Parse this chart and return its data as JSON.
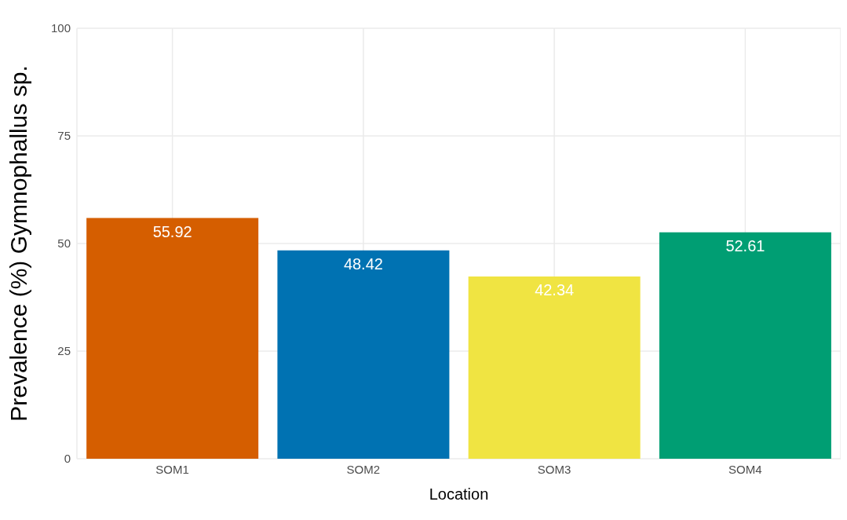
{
  "chart_data": {
    "type": "bar",
    "categories": [
      "SOM1",
      "SOM2",
      "SOM3",
      "SOM4"
    ],
    "values": [
      55.92,
      48.42,
      42.34,
      52.61
    ],
    "colors": [
      "#d55e00",
      "#0072b2",
      "#f0e442",
      "#009e73"
    ],
    "xlabel": "Location",
    "ylabel": "Prevalence (%) Gymnophallus sp.",
    "ylim": [
      0,
      100
    ],
    "yticks": [
      0,
      25,
      50,
      75,
      100
    ],
    "grid": true,
    "data_labels": true
  }
}
